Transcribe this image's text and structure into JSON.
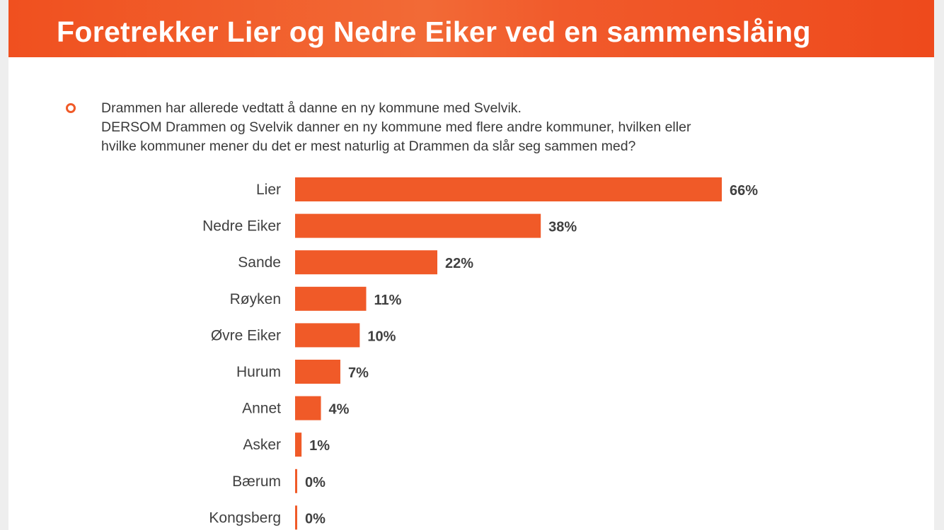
{
  "header": {
    "title": "Foretrekker Lier og Nedre Eiker ved en sammenslåing"
  },
  "question": {
    "lines": [
      "Drammen har allerede vedtatt å danne en ny kommune med Svelvik.",
      "DERSOM Drammen og Svelvik danner en ny kommune med flere andre kommuner, hvilken eller",
      "hvilke kommuner mener du det er mest naturlig at Drammen da slår seg sammen med?"
    ]
  },
  "colors": {
    "accent": "#f05a28",
    "bar": "#f05a28",
    "text": "#404040"
  },
  "icons": {
    "bullet": "ring-bullet-icon"
  },
  "chart_data": {
    "type": "bar",
    "orientation": "horizontal",
    "title": "",
    "xlabel": "",
    "ylabel": "",
    "categories": [
      "Lier",
      "Nedre Eiker",
      "Sande",
      "Røyken",
      "Øvre Eiker",
      "Hurum",
      "Annet",
      "Asker",
      "Bærum",
      "Kongsberg"
    ],
    "values": [
      66,
      38,
      22,
      11,
      10,
      7,
      4,
      1,
      0,
      0
    ],
    "value_labels": [
      "66%",
      "38%",
      "22%",
      "11%",
      "10%",
      "7%",
      "4%",
      "1%",
      "0%",
      "0%"
    ],
    "unit": "%",
    "xlim": [
      0,
      66
    ],
    "grid": false,
    "legend": "none"
  }
}
